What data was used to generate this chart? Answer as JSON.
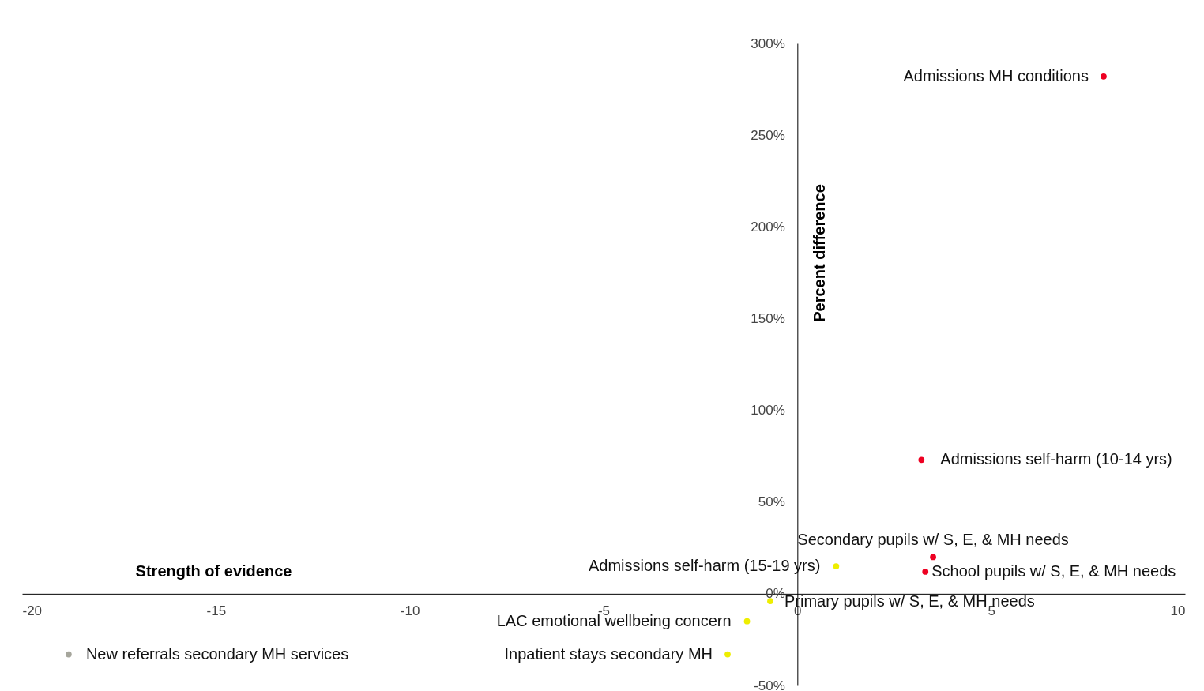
{
  "chart_data": {
    "type": "scatter",
    "xlabel": "Strength of evidence",
    "ylabel": "Percent difference",
    "xlim": [
      -20,
      10
    ],
    "xticks": [
      -20,
      -15,
      -10,
      -5,
      0,
      5,
      10
    ],
    "ylim": [
      -50,
      300
    ],
    "yticks": [
      {
        "value": -50,
        "label": "-50%"
      },
      {
        "value": 0,
        "label": "0%"
      },
      {
        "value": 50,
        "label": "50%"
      },
      {
        "value": 100,
        "label": "100%"
      },
      {
        "value": 150,
        "label": "150%"
      },
      {
        "value": 200,
        "label": "200%"
      },
      {
        "value": 250,
        "label": "250%"
      },
      {
        "value": 300,
        "label": "300%"
      }
    ],
    "grid": false,
    "marker": "circle",
    "series": [
      {
        "name": "Admissions MH conditions",
        "color": "#ee0022",
        "x": [
          7.9
        ],
        "values": [
          282
        ]
      },
      {
        "name": "Admissions self-harm (10-14 yrs)",
        "color": "#ee0022",
        "x": [
          3.2
        ],
        "values": [
          73
        ]
      },
      {
        "name": "Secondary pupils w/ S, E, & MH needs",
        "color": "#ee0022",
        "x": [
          3.5
        ],
        "values": [
          20
        ]
      },
      {
        "name": "School pupils w/ S, E, & MH needs",
        "color": "#ee0022",
        "x": [
          3.3
        ],
        "values": [
          12
        ]
      },
      {
        "name": "Admissions self-harm (15-19 yrs)",
        "color": "#eeee00",
        "x": [
          1.0
        ],
        "values": [
          15
        ]
      },
      {
        "name": "Primary pupils w/ S, E, & MH needs",
        "color": "#eeee00",
        "x": [
          -0.7
        ],
        "values": [
          -4
        ]
      },
      {
        "name": "LAC emotional wellbeing concern",
        "color": "#eeee00",
        "x": [
          -1.3
        ],
        "values": [
          -15
        ]
      },
      {
        "name": "Inpatient stays secondary MH",
        "color": "#eeee00",
        "x": [
          -1.8
        ],
        "values": [
          -33
        ]
      },
      {
        "name": "New referrals secondary MH services",
        "color": "#a6a69c",
        "x": [
          -18.8
        ],
        "values": [
          -33
        ]
      }
    ]
  }
}
